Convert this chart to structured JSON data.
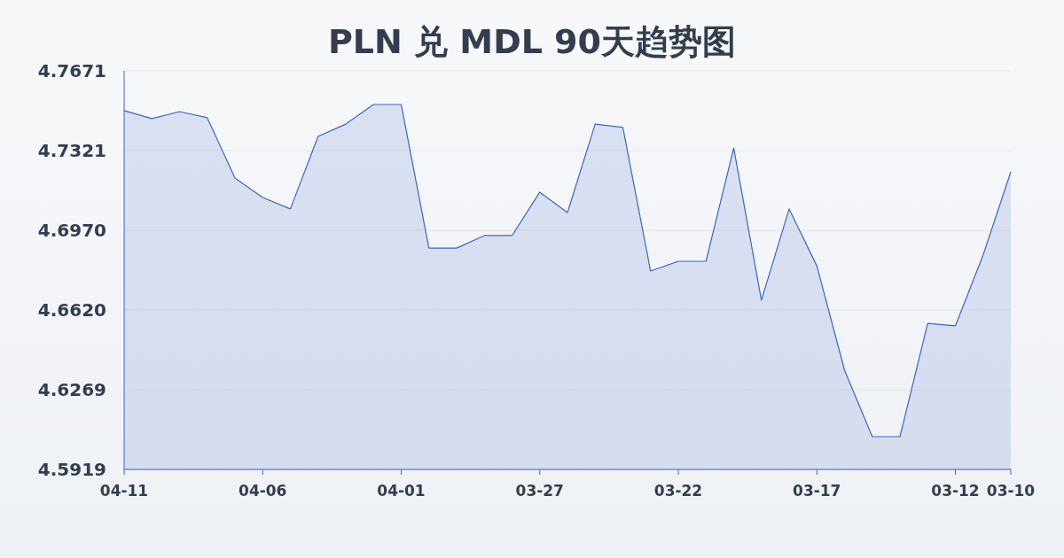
{
  "chart_data": {
    "type": "area",
    "title": "PLN 兑 MDL 90天趋势图",
    "categories": [
      "04-11",
      null,
      null,
      null,
      null,
      "04-06",
      null,
      null,
      null,
      null,
      "04-01",
      null,
      null,
      null,
      null,
      "03-27",
      null,
      null,
      null,
      null,
      "03-22",
      null,
      null,
      null,
      null,
      "03-17",
      null,
      null,
      null,
      null,
      "03-12",
      null,
      "03-10"
    ],
    "values": [
      4.7496,
      4.7461,
      4.7492,
      4.7465,
      4.72,
      4.7114,
      4.7064,
      4.7383,
      4.7437,
      4.7523,
      4.7523,
      4.6892,
      4.6892,
      4.6947,
      4.6947,
      4.7138,
      4.7048,
      4.7437,
      4.7422,
      4.6791,
      4.6834,
      4.6834,
      4.7332,
      4.6663,
      4.7064,
      4.6814,
      4.6355,
      4.6063,
      4.6063,
      4.6561,
      4.655,
      4.6861,
      4.7227
    ],
    "color": "#3a67c4",
    "ylim": [
      4.5919,
      4.7671
    ],
    "yticks": [
      4.5919,
      4.6269,
      {
        "value": 4.662,
        "label": "4.6620"
      },
      {
        "value": 4.697,
        "label": "4.6970"
      },
      4.7321,
      4.7671
    ],
    "grid": "y"
  }
}
